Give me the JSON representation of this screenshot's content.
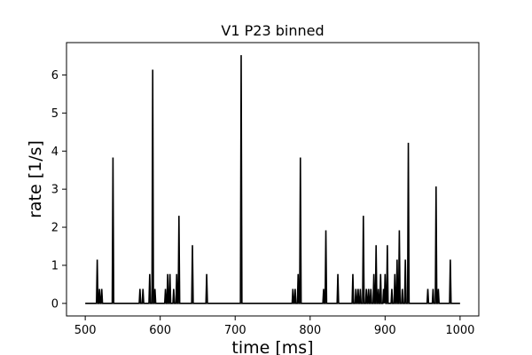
{
  "chart_data": {
    "type": "line",
    "title": "V1 P23 binned",
    "xlabel": "time [ms]",
    "ylabel": "rate [1/s]",
    "xlim": [
      475,
      1025
    ],
    "ylim": [
      -0.33,
      6.85
    ],
    "xticks": [
      500,
      600,
      700,
      800,
      900,
      1000
    ],
    "yticks": [
      0,
      1,
      2,
      3,
      4,
      5,
      6
    ],
    "grid": false,
    "legend": "none",
    "line_color": "#000000",
    "baseline": 0,
    "x_range": [
      500,
      1000
    ],
    "bin_width_ms": 1,
    "spikes": [
      [
        516,
        1.15
      ],
      [
        519,
        0.38
      ],
      [
        522,
        0.38
      ],
      [
        537,
        3.83
      ],
      [
        573,
        0.38
      ],
      [
        577,
        0.38
      ],
      [
        586,
        0.77
      ],
      [
        590,
        6.14
      ],
      [
        593,
        0.38
      ],
      [
        607,
        0.38
      ],
      [
        610,
        0.77
      ],
      [
        613,
        0.77
      ],
      [
        618,
        0.38
      ],
      [
        622,
        0.77
      ],
      [
        625,
        2.3
      ],
      [
        643,
        1.53
      ],
      [
        662,
        0.77
      ],
      [
        708,
        6.52
      ],
      [
        777,
        0.38
      ],
      [
        780,
        0.38
      ],
      [
        784,
        0.77
      ],
      [
        787,
        3.83
      ],
      [
        818,
        0.38
      ],
      [
        821,
        1.92
      ],
      [
        837,
        0.77
      ],
      [
        857,
        0.77
      ],
      [
        861,
        0.38
      ],
      [
        864,
        0.38
      ],
      [
        867,
        0.38
      ],
      [
        871,
        2.3
      ],
      [
        875,
        0.38
      ],
      [
        878,
        0.38
      ],
      [
        881,
        0.38
      ],
      [
        885,
        0.77
      ],
      [
        888,
        1.53
      ],
      [
        891,
        0.38
      ],
      [
        894,
        0.77
      ],
      [
        898,
        0.38
      ],
      [
        900,
        0.77
      ],
      [
        903,
        1.53
      ],
      [
        909,
        0.38
      ],
      [
        913,
        0.77
      ],
      [
        916,
        1.15
      ],
      [
        919,
        1.92
      ],
      [
        923,
        0.38
      ],
      [
        927,
        1.15
      ],
      [
        931,
        4.22
      ],
      [
        957,
        0.38
      ],
      [
        964,
        0.38
      ],
      [
        968,
        3.07
      ],
      [
        971,
        0.38
      ],
      [
        987,
        1.15
      ]
    ]
  }
}
